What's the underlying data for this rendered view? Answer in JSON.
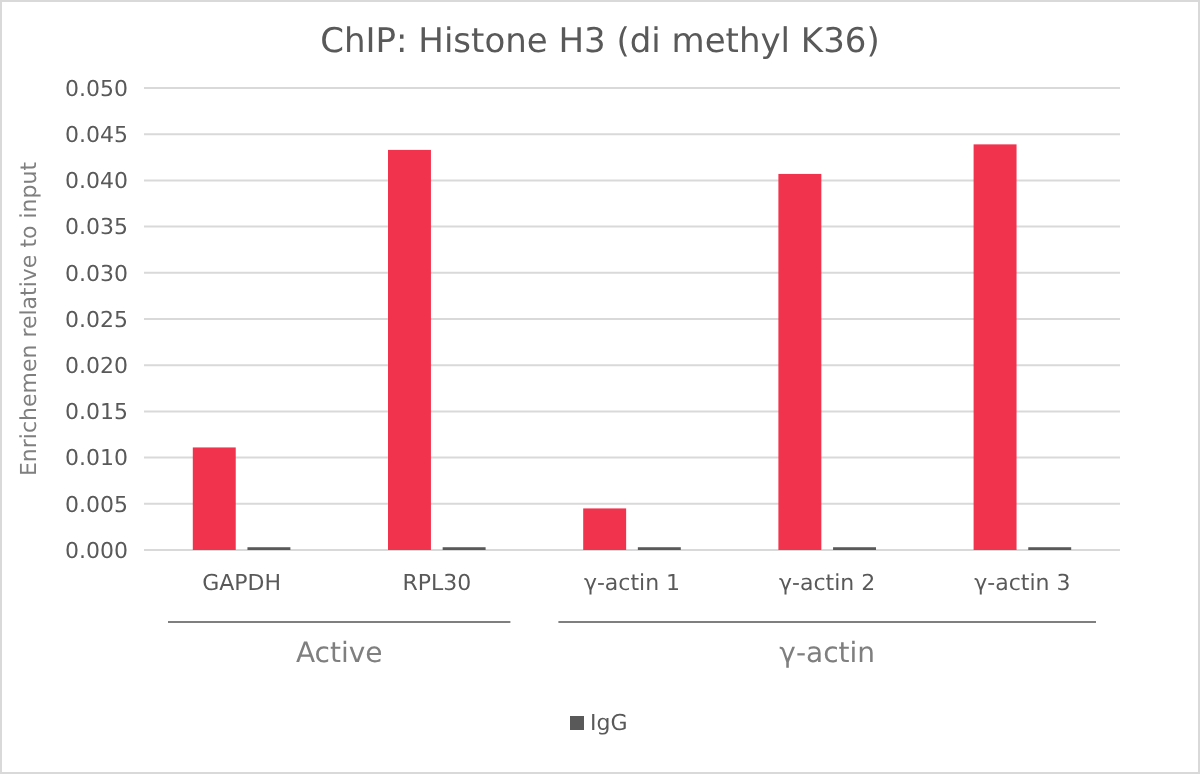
{
  "chart_data": {
    "type": "bar",
    "title": "ChIP: Histone H3 (di methyl K36)",
    "ylabel": "Enrichemen relative to input",
    "categories": [
      "GAPDH",
      "RPL30",
      "γ-actin 1",
      "γ-actin 2",
      "γ-actin 3"
    ],
    "series": [
      {
        "color": "#f2334d",
        "values": [
          0.0111,
          0.0433,
          0.0045,
          0.0407,
          0.0439
        ]
      },
      {
        "name": "IgG",
        "color": "#595959",
        "values": [
          0.0003,
          0.0003,
          0.0003,
          0.0003,
          0.0003
        ]
      }
    ],
    "ylim": [
      0,
      0.05
    ],
    "yticks": [
      {
        "value": 0,
        "label": "0.000"
      },
      {
        "value": 0.005,
        "label": "0.005"
      },
      {
        "value": 0.01,
        "label": "0.010"
      },
      {
        "value": 0.015,
        "label": "0.015"
      },
      {
        "value": 0.02,
        "label": "0.020"
      },
      {
        "value": 0.025,
        "label": "0.025"
      },
      {
        "value": 0.03,
        "label": "0.030"
      },
      {
        "value": 0.035,
        "label": "0.035"
      },
      {
        "value": 0.04,
        "label": "0.040"
      },
      {
        "value": 0.045,
        "label": "0.045"
      },
      {
        "value": 0.05,
        "label": "0.050"
      }
    ],
    "grid": "y",
    "legend": "bottom",
    "annotations": [
      "Active",
      "γ-actin"
    ]
  }
}
